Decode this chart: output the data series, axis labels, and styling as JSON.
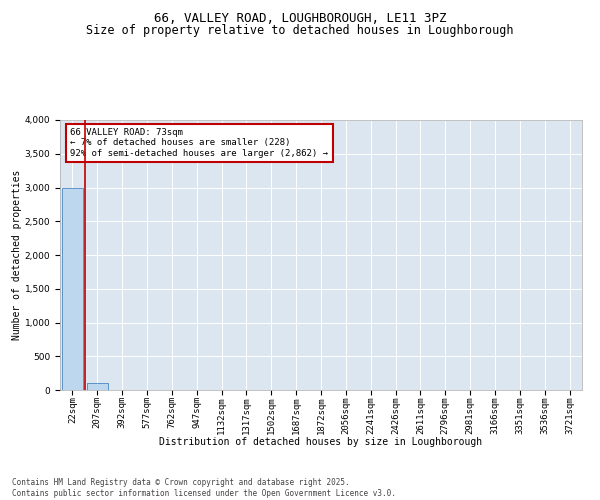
{
  "title1": "66, VALLEY ROAD, LOUGHBOROUGH, LE11 3PZ",
  "title2": "Size of property relative to detached houses in Loughborough",
  "xlabel": "Distribution of detached houses by size in Loughborough",
  "ylabel": "Number of detached properties",
  "annotation_line1": "66 VALLEY ROAD: 73sqm",
  "annotation_line2": "← 7% of detached houses are smaller (228)",
  "annotation_line3": "92% of semi-detached houses are larger (2,862) →",
  "footer1": "Contains HM Land Registry data © Crown copyright and database right 2025.",
  "footer2": "Contains public sector information licensed under the Open Government Licence v3.0.",
  "categories": [
    "22sqm",
    "207sqm",
    "392sqm",
    "577sqm",
    "762sqm",
    "947sqm",
    "1132sqm",
    "1317sqm",
    "1502sqm",
    "1687sqm",
    "1872sqm",
    "2056sqm",
    "2241sqm",
    "2426sqm",
    "2611sqm",
    "2796sqm",
    "2981sqm",
    "3166sqm",
    "3351sqm",
    "3536sqm",
    "3721sqm"
  ],
  "values": [
    3000,
    110,
    0,
    0,
    0,
    0,
    0,
    0,
    0,
    0,
    0,
    0,
    0,
    0,
    0,
    0,
    0,
    0,
    0,
    0,
    0
  ],
  "bar_color": "#bdd7ee",
  "bar_edge_color": "#2e75b6",
  "ylim": [
    0,
    4000
  ],
  "yticks": [
    0,
    500,
    1000,
    1500,
    2000,
    2500,
    3000,
    3500,
    4000
  ],
  "plot_bg_color": "#dce6f1",
  "red_box_color": "#c00000",
  "title1_fontsize": 9,
  "title2_fontsize": 8.5,
  "annotation_fontsize": 6.5,
  "axis_fontsize": 6.5,
  "ylabel_fontsize": 7,
  "xlabel_fontsize": 7,
  "footer_fontsize": 5.5
}
